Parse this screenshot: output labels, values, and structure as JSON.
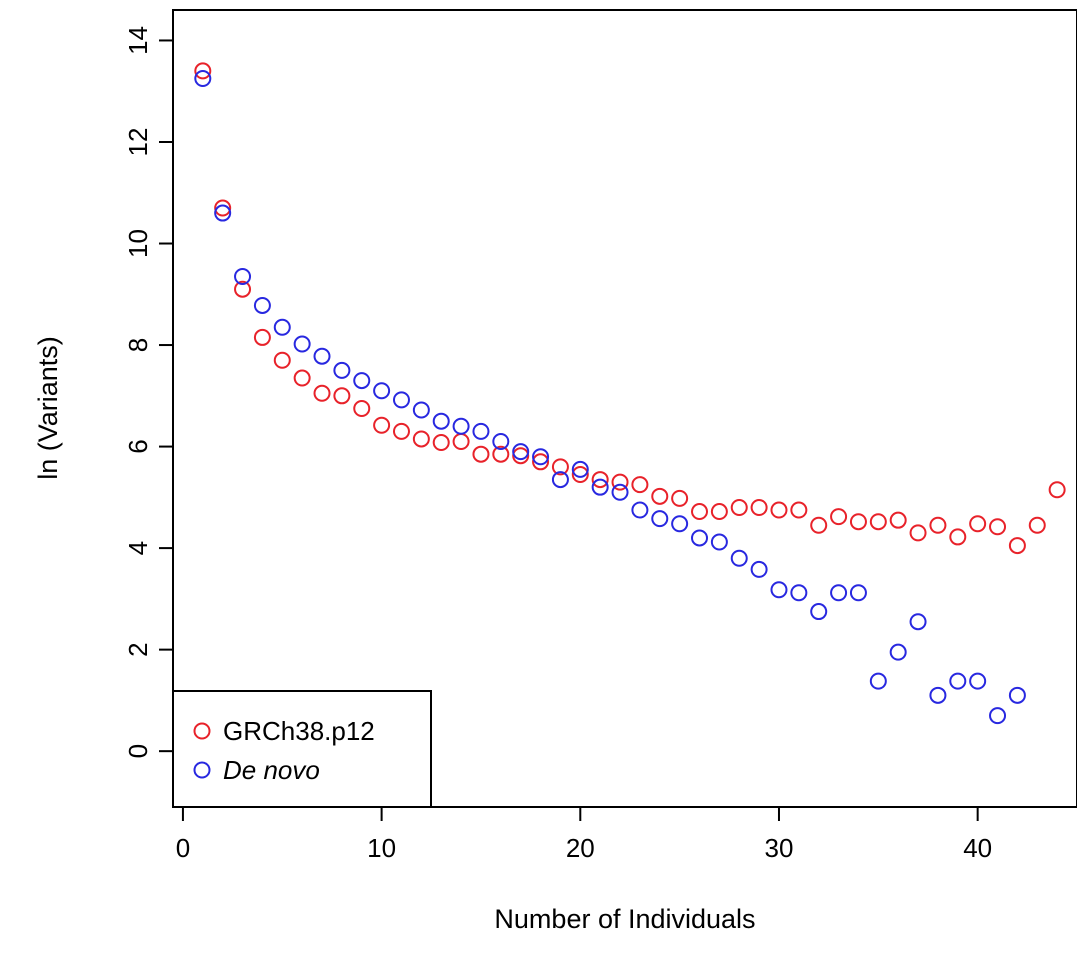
{
  "chart_data": {
    "type": "scatter",
    "title": "",
    "xlabel": "Number of Individuals",
    "ylabel": "ln (Variants)",
    "xlim": [
      -0.5,
      45
    ],
    "ylim": [
      -1.1,
      14.6
    ],
    "x_ticks": [
      0,
      10,
      20,
      30,
      40
    ],
    "y_ticks": [
      0,
      2,
      4,
      6,
      8,
      10,
      12,
      14
    ],
    "grid": false,
    "legend_position": "bottom-left",
    "series": [
      {
        "name": "GRCh38.p12",
        "color": "#e8222a",
        "x": [
          1,
          2,
          3,
          4,
          5,
          6,
          7,
          8,
          9,
          10,
          11,
          12,
          13,
          14,
          15,
          16,
          17,
          18,
          19,
          20,
          21,
          22,
          23,
          24,
          25,
          26,
          27,
          28,
          29,
          30,
          31,
          32,
          33,
          34,
          35,
          36,
          37,
          38,
          39,
          40,
          41,
          42,
          43,
          44
        ],
        "y": [
          13.4,
          10.7,
          9.1,
          8.15,
          7.7,
          7.35,
          7.05,
          7.0,
          6.75,
          6.42,
          6.3,
          6.15,
          6.08,
          6.1,
          5.85,
          5.85,
          5.82,
          5.7,
          5.6,
          5.45,
          5.35,
          5.3,
          5.25,
          5.02,
          4.98,
          4.72,
          4.72,
          4.8,
          4.8,
          4.75,
          4.75,
          4.45,
          4.62,
          4.52,
          4.52,
          4.55,
          4.3,
          4.45,
          4.22,
          4.48,
          4.42,
          4.05,
          4.45,
          5.15
        ]
      },
      {
        "name": "De novo",
        "name_style": "italic",
        "color": "#2828e0",
        "x": [
          1,
          2,
          3,
          4,
          5,
          6,
          7,
          8,
          9,
          10,
          11,
          12,
          13,
          14,
          15,
          16,
          17,
          18,
          19,
          20,
          21,
          22,
          23,
          24,
          25,
          26,
          27,
          28,
          29,
          30,
          31,
          32,
          33,
          34,
          35,
          36,
          37,
          38,
          39,
          40,
          41,
          42
        ],
        "y": [
          13.25,
          10.6,
          9.35,
          8.78,
          8.35,
          8.02,
          7.78,
          7.5,
          7.3,
          7.1,
          6.92,
          6.72,
          6.5,
          6.4,
          6.3,
          6.1,
          5.9,
          5.8,
          5.35,
          5.55,
          5.2,
          5.1,
          4.75,
          4.58,
          4.48,
          4.2,
          4.12,
          3.8,
          3.58,
          3.18,
          3.12,
          2.75,
          3.12,
          3.12,
          1.38,
          1.95,
          2.55,
          1.1,
          1.38,
          1.38,
          0.7,
          1.1
        ]
      }
    ]
  }
}
